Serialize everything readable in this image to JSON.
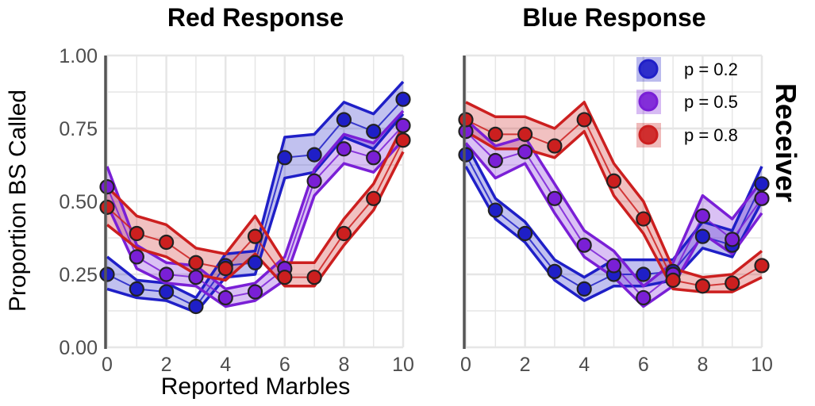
{
  "figure": {
    "ylabel": "Proportion BS Called",
    "xlabel": "Reported Marbles",
    "facet_label": "Receiver"
  },
  "legend": {
    "entries": [
      "p = 0.2",
      "p = 0.5",
      "p = 0.8"
    ]
  },
  "colors": {
    "p02": "#1f1fc7",
    "p05": "#7a1fd6",
    "p08": "#cc1f1f",
    "grid": "#e6e6e6",
    "axis": "#555555"
  },
  "chart_data": [
    {
      "type": "line",
      "title": "Red Response",
      "xlabel": "Reported Marbles",
      "ylabel": "Proportion BS Called",
      "xlim": [
        0,
        10
      ],
      "ylim": [
        0,
        1
      ],
      "x_ticks": [
        "0",
        "2",
        "4",
        "6",
        "8",
        "10"
      ],
      "y_ticks": [
        "0.00",
        "0.25",
        "0.50",
        "0.75",
        "1.00"
      ],
      "x": [
        0,
        1,
        2,
        3,
        4,
        5,
        6,
        7,
        8,
        9,
        10
      ],
      "series": [
        {
          "name": "p = 0.2",
          "color": "#1f1fc7",
          "values": [
            0.25,
            0.2,
            0.19,
            0.14,
            0.28,
            0.29,
            0.65,
            0.66,
            0.78,
            0.74,
            0.85
          ],
          "lower": [
            0.2,
            0.17,
            0.16,
            0.12,
            0.24,
            0.25,
            0.58,
            0.6,
            0.72,
            0.68,
            0.8
          ],
          "upper": [
            0.31,
            0.23,
            0.22,
            0.17,
            0.32,
            0.33,
            0.72,
            0.73,
            0.84,
            0.8,
            0.91
          ]
        },
        {
          "name": "p = 0.5",
          "color": "#7a1fd6",
          "values": [
            0.55,
            0.31,
            0.25,
            0.24,
            0.17,
            0.19,
            0.27,
            0.57,
            0.68,
            0.65,
            0.76
          ],
          "lower": [
            0.49,
            0.27,
            0.22,
            0.21,
            0.14,
            0.16,
            0.23,
            0.52,
            0.63,
            0.6,
            0.71
          ],
          "upper": [
            0.62,
            0.35,
            0.29,
            0.28,
            0.2,
            0.22,
            0.31,
            0.61,
            0.73,
            0.7,
            0.81
          ]
        },
        {
          "name": "p = 0.8",
          "color": "#cc1f1f",
          "values": [
            0.48,
            0.39,
            0.36,
            0.29,
            0.27,
            0.38,
            0.24,
            0.24,
            0.39,
            0.51,
            0.71
          ],
          "lower": [
            0.42,
            0.34,
            0.31,
            0.25,
            0.23,
            0.32,
            0.21,
            0.21,
            0.35,
            0.47,
            0.67
          ],
          "upper": [
            0.55,
            0.45,
            0.42,
            0.34,
            0.32,
            0.45,
            0.29,
            0.29,
            0.44,
            0.56,
            0.76
          ]
        }
      ]
    },
    {
      "type": "line",
      "title": "Blue Response",
      "xlabel": "",
      "ylabel": "",
      "xlim": [
        0,
        10
      ],
      "ylim": [
        0,
        1
      ],
      "x_ticks": [
        "0",
        "2",
        "4",
        "6",
        "8",
        "10"
      ],
      "y_ticks": [],
      "x": [
        0,
        1,
        2,
        3,
        4,
        5,
        6,
        7,
        8,
        9,
        10
      ],
      "series": [
        {
          "name": "p = 0.2",
          "color": "#1f1fc7",
          "values": [
            0.66,
            0.47,
            0.39,
            0.26,
            0.2,
            0.25,
            0.25,
            0.26,
            0.38,
            0.35,
            0.56
          ],
          "lower": [
            0.62,
            0.44,
            0.36,
            0.23,
            0.16,
            0.21,
            0.21,
            0.23,
            0.34,
            0.31,
            0.5
          ],
          "upper": [
            0.7,
            0.51,
            0.43,
            0.3,
            0.24,
            0.3,
            0.3,
            0.3,
            0.43,
            0.4,
            0.62
          ]
        },
        {
          "name": "p = 0.5",
          "color": "#7a1fd6",
          "values": [
            0.74,
            0.64,
            0.67,
            0.51,
            0.35,
            0.28,
            0.17,
            0.25,
            0.45,
            0.37,
            0.51
          ],
          "lower": [
            0.7,
            0.58,
            0.63,
            0.46,
            0.31,
            0.24,
            0.14,
            0.21,
            0.39,
            0.32,
            0.46
          ],
          "upper": [
            0.78,
            0.69,
            0.72,
            0.56,
            0.4,
            0.33,
            0.21,
            0.29,
            0.52,
            0.44,
            0.57
          ]
        },
        {
          "name": "p = 0.8",
          "color": "#cc1f1f",
          "values": [
            0.78,
            0.73,
            0.73,
            0.69,
            0.78,
            0.57,
            0.44,
            0.23,
            0.21,
            0.22,
            0.28
          ],
          "lower": [
            0.74,
            0.68,
            0.68,
            0.65,
            0.74,
            0.52,
            0.39,
            0.2,
            0.19,
            0.19,
            0.24
          ],
          "upper": [
            0.84,
            0.79,
            0.79,
            0.75,
            0.84,
            0.63,
            0.5,
            0.27,
            0.24,
            0.25,
            0.33
          ]
        }
      ]
    }
  ]
}
